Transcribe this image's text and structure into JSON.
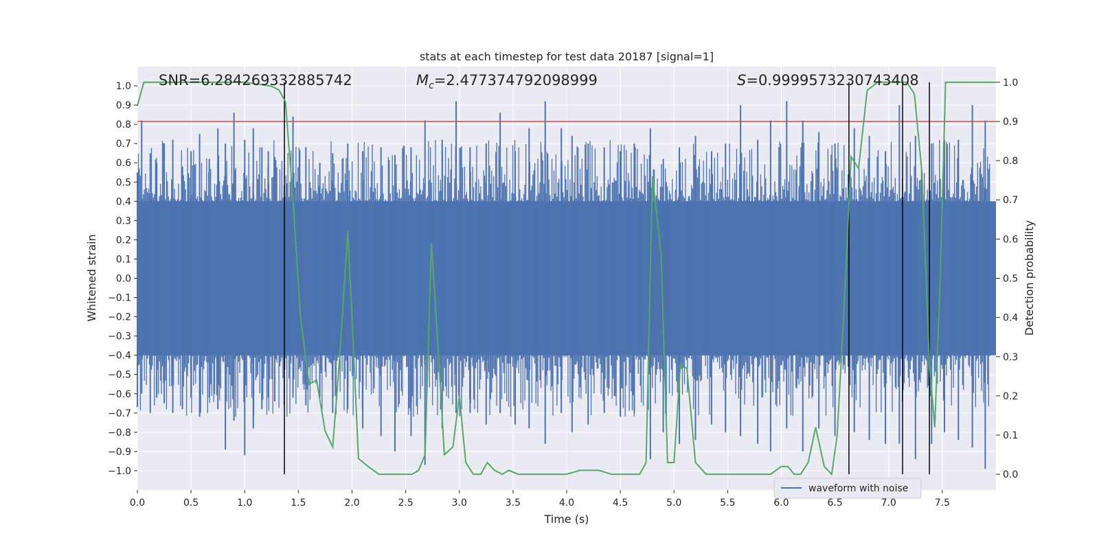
{
  "chart_data": {
    "type": "line",
    "title": "stats at each timestep for test data 20187 [signal=1]",
    "xlabel": "Time (s)",
    "ylabel": "Whitened strain",
    "y2label": "Detection probability",
    "xlim": [
      0.0,
      8.0
    ],
    "ylim": [
      -1.1,
      1.1
    ],
    "y2lim": [
      -0.04,
      1.04
    ],
    "x_ticks": [
      "0.0",
      "0.5",
      "1.0",
      "1.5",
      "2.0",
      "2.5",
      "3.0",
      "3.5",
      "4.0",
      "4.5",
      "5.0",
      "5.5",
      "6.0",
      "6.5",
      "7.0",
      "7.5"
    ],
    "y_ticks": [
      "1.0",
      "0.9",
      "0.8",
      "0.7",
      "0.6",
      "0.5",
      "0.4",
      "0.3",
      "0.2",
      "0.1",
      "0.0",
      "−0.1",
      "−0.2",
      "−0.3",
      "−0.4",
      "−0.5",
      "−0.6",
      "−0.7",
      "−0.8",
      "−0.9",
      "−1.0"
    ],
    "y2_ticks": [
      "1.0",
      "0.9",
      "0.8",
      "0.7",
      "0.6",
      "0.5",
      "0.4",
      "0.3",
      "0.2",
      "0.1",
      "0.0"
    ],
    "annotations": {
      "snr": "SNR=6.284269332885742",
      "mc_symbol": "M",
      "mc_sub": "c",
      "mc_value": "=2.477374792098999",
      "s_symbol": "S",
      "s_value": "=0.9999573230743408"
    },
    "legend": [
      "waveform with noise"
    ],
    "legend_position": "lower-right",
    "threshold_y2": 0.9,
    "vertical_lines_x": [
      1.37,
      6.63,
      7.13,
      7.38
    ],
    "series": [
      {
        "name": "waveform with noise",
        "axis": "left",
        "color": "#4c72b0",
        "envelope": "dense noise, bulk within ±0.4, spikes to about ±0.9",
        "spikes_x": [
          0.0,
          0.04,
          0.12,
          0.18,
          0.25,
          0.33,
          0.42,
          0.5,
          0.58,
          0.67,
          0.75,
          0.82,
          0.9,
          1.0,
          1.08,
          1.16,
          1.22,
          1.28,
          1.45,
          1.57,
          1.7,
          1.82,
          1.96,
          2.1,
          2.27,
          2.4,
          2.55,
          2.68,
          2.84,
          2.97,
          3.1,
          3.25,
          3.38,
          3.52,
          3.65,
          3.8,
          3.95,
          4.05,
          4.2,
          4.35,
          4.5,
          4.63,
          4.78,
          4.9,
          5.05,
          5.2,
          5.35,
          5.48,
          5.62,
          5.78,
          5.9,
          6.05,
          6.2,
          6.35,
          6.5,
          6.68,
          6.82,
          6.97,
          7.1,
          7.25,
          7.4,
          7.52,
          7.65,
          7.78,
          7.9
        ],
        "spikes_top": [
          0.55,
          0.82,
          0.65,
          0.6,
          0.7,
          0.72,
          0.58,
          0.66,
          0.75,
          0.62,
          0.78,
          0.7,
          0.86,
          0.72,
          0.78,
          0.68,
          0.66,
          0.63,
          0.84,
          0.68,
          0.6,
          0.65,
          0.7,
          0.66,
          0.68,
          0.64,
          0.68,
          0.82,
          0.72,
          0.92,
          0.68,
          0.7,
          0.86,
          0.66,
          0.78,
          0.92,
          0.78,
          0.74,
          0.7,
          0.68,
          0.66,
          0.7,
          0.78,
          0.62,
          0.68,
          0.74,
          0.66,
          0.7,
          0.9,
          0.72,
          0.82,
          0.92,
          0.82,
          0.76,
          0.7,
          0.78,
          0.74,
          0.66,
          0.9,
          0.74,
          0.7,
          0.72,
          0.72,
          0.9,
          0.82
        ],
        "spikes_bottom": [
          -0.67,
          -0.6,
          -0.7,
          -0.62,
          -0.65,
          -0.7,
          -0.68,
          -0.62,
          -0.72,
          -0.62,
          -0.68,
          -0.89,
          -0.74,
          -0.92,
          -0.78,
          -0.68,
          -0.62,
          -0.64,
          -0.62,
          -0.66,
          -0.62,
          -0.7,
          -0.68,
          -0.78,
          -0.82,
          -0.9,
          -0.82,
          -0.97,
          -0.78,
          -0.7,
          -0.7,
          -0.76,
          -0.7,
          -0.76,
          -0.78,
          -0.86,
          -0.7,
          -0.8,
          -0.76,
          -0.7,
          -0.72,
          -0.7,
          -0.94,
          -0.8,
          -0.86,
          -0.84,
          -0.76,
          -0.8,
          -0.82,
          -0.86,
          -0.9,
          -0.78,
          -0.9,
          -0.78,
          -0.82,
          -0.8,
          -0.84,
          -0.86,
          -0.86,
          -0.94,
          -0.86,
          -0.8,
          -0.84,
          -0.88,
          -0.99
        ]
      },
      {
        "name": "detection probability",
        "axis": "right",
        "color": "#55a868",
        "x": [
          0.0,
          0.06,
          0.12,
          0.25,
          0.5,
          0.75,
          1.0,
          1.25,
          1.32,
          1.38,
          1.45,
          1.52,
          1.6,
          1.67,
          1.75,
          1.82,
          1.88,
          1.96,
          2.0,
          2.06,
          2.15,
          2.25,
          2.5,
          2.56,
          2.62,
          2.68,
          2.74,
          2.8,
          2.86,
          2.94,
          3.0,
          3.06,
          3.13,
          3.2,
          3.26,
          3.33,
          3.4,
          3.46,
          3.55,
          3.8,
          4.0,
          4.12,
          4.2,
          4.3,
          4.42,
          4.56,
          4.68,
          4.74,
          4.8,
          4.88,
          4.94,
          5.0,
          5.06,
          5.12,
          5.2,
          5.3,
          5.55,
          5.9,
          6.0,
          6.06,
          6.12,
          6.18,
          6.25,
          6.32,
          6.4,
          6.47,
          6.52,
          6.58,
          6.65,
          6.72,
          6.8,
          6.9,
          7.03,
          7.1,
          7.17,
          7.24,
          7.31,
          7.38,
          7.43,
          7.48,
          7.53,
          7.6,
          8.0
        ],
        "y": [
          0.94,
          1.0,
          1.0,
          1.0,
          1.0,
          1.0,
          1.0,
          0.99,
          0.98,
          0.95,
          0.7,
          0.4,
          0.23,
          0.24,
          0.11,
          0.07,
          0.28,
          0.62,
          0.4,
          0.04,
          0.02,
          0.0,
          0.0,
          0.0,
          0.01,
          0.05,
          0.59,
          0.33,
          0.05,
          0.07,
          0.2,
          0.03,
          0.0,
          0.0,
          0.03,
          0.01,
          0.0,
          0.01,
          0.0,
          0.0,
          0.0,
          0.01,
          0.01,
          0.01,
          0.0,
          0.0,
          0.0,
          0.03,
          0.76,
          0.56,
          0.03,
          0.03,
          0.28,
          0.27,
          0.03,
          0.0,
          0.0,
          0.0,
          0.02,
          0.02,
          0.0,
          0.0,
          0.03,
          0.12,
          0.02,
          0.0,
          0.1,
          0.4,
          0.81,
          0.78,
          0.98,
          1.0,
          1.0,
          1.0,
          1.0,
          0.97,
          0.77,
          0.28,
          0.12,
          0.5,
          1.0,
          1.0,
          1.0
        ]
      }
    ],
    "threshold_color": "#c44e52",
    "vline_color": "#000000",
    "background_color": "#eaeaf2",
    "grid_color": "#ffffff"
  }
}
